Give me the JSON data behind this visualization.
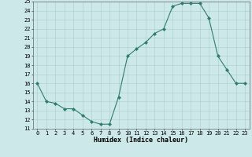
{
  "x": [
    0,
    1,
    2,
    3,
    4,
    5,
    6,
    7,
    8,
    9,
    10,
    11,
    12,
    13,
    14,
    15,
    16,
    17,
    18,
    19,
    20,
    21,
    22,
    23
  ],
  "y": [
    16,
    14,
    13.8,
    13.2,
    13.2,
    12.5,
    11.8,
    11.5,
    11.5,
    14.5,
    19,
    19.8,
    20.5,
    21.5,
    22,
    24.5,
    24.8,
    24.8,
    24.8,
    23.2,
    19,
    17.5,
    16,
    16
  ],
  "line_color": "#2e7d6e",
  "marker_color": "#2e7d6e",
  "bg_color": "#cce8e8",
  "grid_color": "#aacccc",
  "xlabel": "Humidex (Indice chaleur)",
  "ylim": [
    11,
    25
  ],
  "xlim_min": -0.5,
  "xlim_max": 23.5,
  "yticks": [
    11,
    12,
    13,
    14,
    15,
    16,
    17,
    18,
    19,
    20,
    21,
    22,
    23,
    24,
    25
  ],
  "xticks": [
    0,
    1,
    2,
    3,
    4,
    5,
    6,
    7,
    8,
    9,
    10,
    11,
    12,
    13,
    14,
    15,
    16,
    17,
    18,
    19,
    20,
    21,
    22,
    23
  ],
  "xtick_labels": [
    "0",
    "1",
    "2",
    "3",
    "4",
    "5",
    "6",
    "7",
    "8",
    "9",
    "10",
    "11",
    "12",
    "13",
    "14",
    "15",
    "16",
    "17",
    "18",
    "19",
    "20",
    "21",
    "22",
    "23"
  ],
  "ytick_labels": [
    "11",
    "12",
    "13",
    "14",
    "15",
    "16",
    "17",
    "18",
    "19",
    "20",
    "21",
    "22",
    "23",
    "24",
    "25"
  ],
  "xlabel_fontsize": 6,
  "tick_fontsize": 5,
  "marker_size": 2,
  "linewidth": 0.8
}
